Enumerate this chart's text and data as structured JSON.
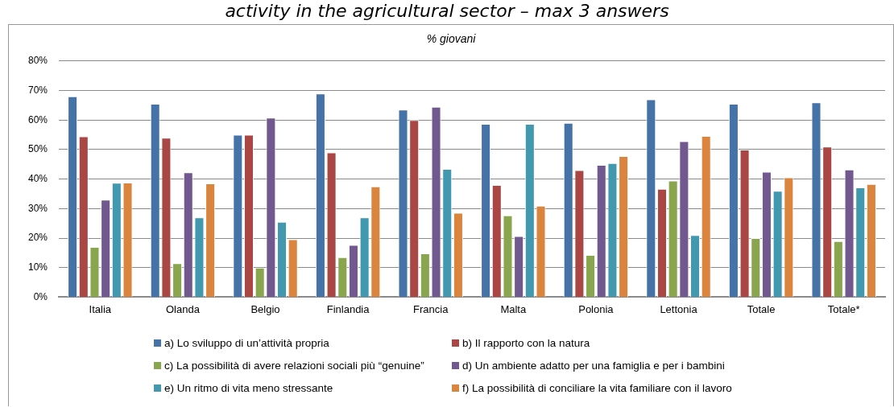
{
  "chart_data": {
    "type": "bar",
    "title": "activity in the agricultural sector – max 3 answers",
    "subtitle": "% giovani",
    "categories": [
      "Italia",
      "Olanda",
      "Belgio",
      "Finlandia",
      "Francia",
      "Malta",
      "Polonia",
      "Lettonia",
      "Totale",
      "Totale*"
    ],
    "series": [
      {
        "name": "a) Lo sviluppo di un’attività propria",
        "color": "#4572a7",
        "values": [
          68,
          65.5,
          55,
          69,
          63.5,
          58.7,
          59,
          67,
          65.5,
          66
        ]
      },
      {
        "name": "b) Il rapporto con la natura",
        "color": "#aa4643",
        "values": [
          54.5,
          54,
          55,
          49,
          60,
          38,
          43,
          36.7,
          50,
          51
        ]
      },
      {
        "name": "c) La possibilità di avere relazioni sociali più “genuine”",
        "color": "#89a54e",
        "values": [
          17,
          11.5,
          10,
          13.5,
          14.8,
          27.7,
          14.3,
          39.5,
          20,
          19
        ]
      },
      {
        "name": "d) Un ambiente adatto per una famiglia e per i bambini",
        "color": "#71588f",
        "values": [
          33,
          42.3,
          60.8,
          17.7,
          64.5,
          20.7,
          44.8,
          52.8,
          42.5,
          43.2
        ]
      },
      {
        "name": "e) Un ritmo di vita meno stressante",
        "color": "#4198af",
        "values": [
          38.7,
          27,
          25.5,
          27,
          43.4,
          58.7,
          45.4,
          21,
          36,
          37.2
        ]
      },
      {
        "name": "f) La possibilità di conciliare la vita familiare con il lavoro",
        "color": "#db843d",
        "values": [
          38.8,
          38.5,
          19.6,
          37.5,
          28.6,
          31,
          47.8,
          54.6,
          40.6,
          38.3
        ]
      }
    ],
    "ylim": [
      0,
      80
    ],
    "yticks": [
      {
        "value": 0,
        "label": "0%"
      },
      {
        "value": 10,
        "label": "10%"
      },
      {
        "value": 20,
        "label": "20%"
      },
      {
        "value": 30,
        "label": "30%"
      },
      {
        "value": 40,
        "label": "40%"
      },
      {
        "value": 50,
        "label": "50%"
      },
      {
        "value": 60,
        "label": "60%"
      },
      {
        "value": 70,
        "label": "70%"
      },
      {
        "value": 80,
        "label": "80%"
      }
    ],
    "grid": "y",
    "legend": "bottom"
  }
}
